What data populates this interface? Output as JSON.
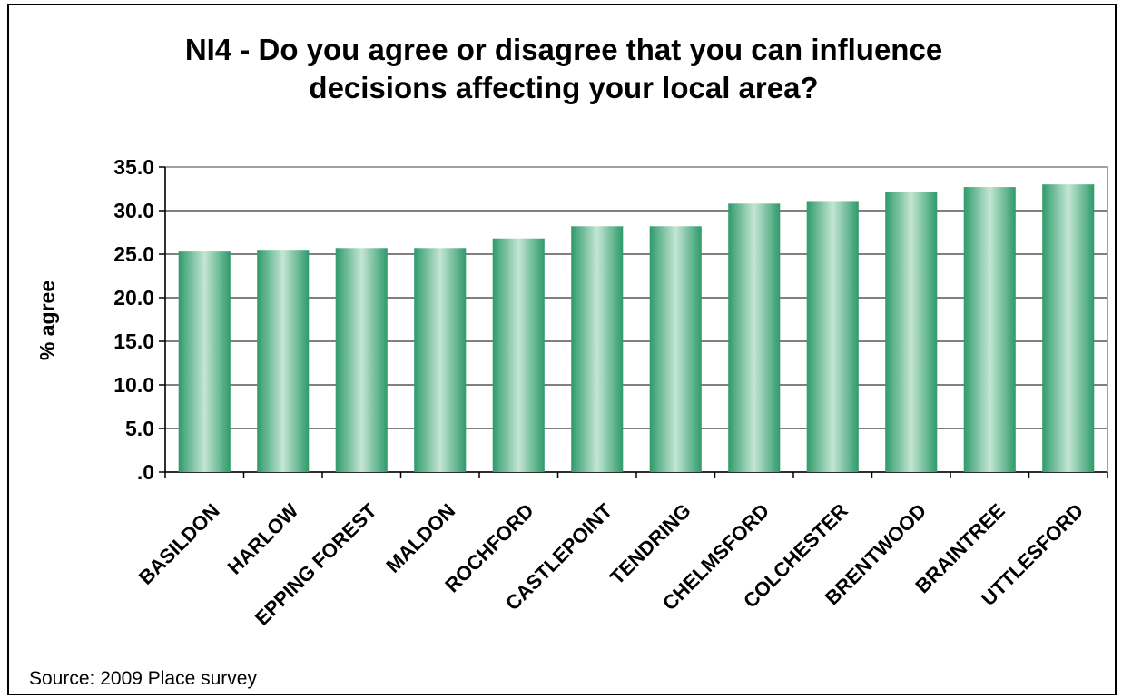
{
  "chart_data": {
    "type": "bar",
    "title_lines": [
      "NI4 - Do you agree or disagree that you can influence",
      "decisions affecting your local area?"
    ],
    "ylabel": "% agree",
    "xlabel": "",
    "ylim": [
      0,
      35
    ],
    "yticks": [
      ".0",
      "5.0",
      "10.0",
      "15.0",
      "20.0",
      "25.0",
      "30.0",
      "35.0"
    ],
    "categories": [
      "BASILDON",
      "HARLOW",
      "EPPING FOREST",
      "MALDON",
      "ROCHFORD",
      "CASTLEPOINT",
      "TENDRING",
      "CHELMSFORD",
      "COLCHESTER",
      "BRENTWOOD",
      "BRAINTREE",
      "UTTLESFORD"
    ],
    "values": [
      25.3,
      25.5,
      25.7,
      25.7,
      26.8,
      28.2,
      28.2,
      30.8,
      31.1,
      32.1,
      32.7,
      33.0
    ],
    "grid": true,
    "legend": "none",
    "bar_color": "#2e9a6a",
    "bar_highlight": "#c4e6d4"
  },
  "source_note": "Source: 2009 Place survey"
}
